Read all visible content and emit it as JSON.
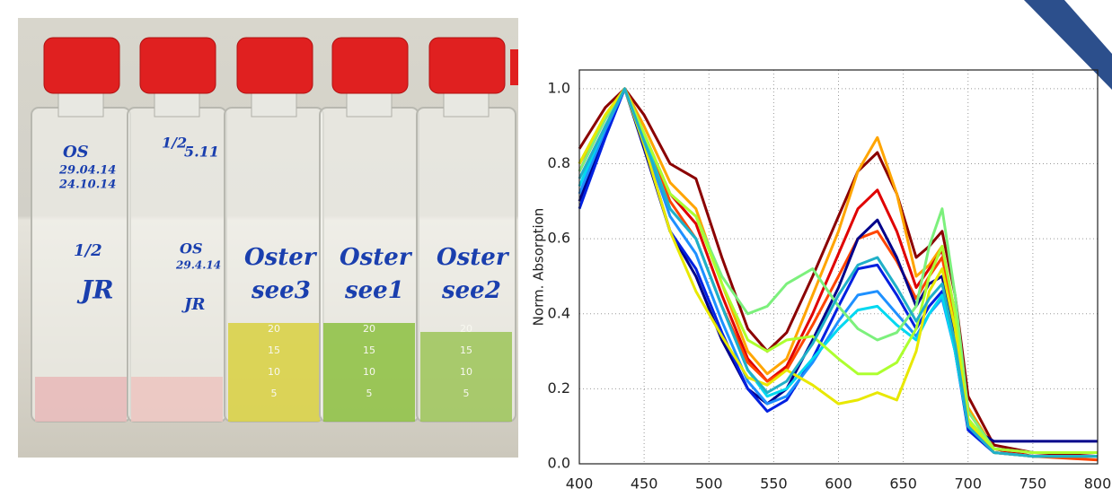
{
  "photo": {
    "flasks": [
      {
        "labels": [
          "OS",
          "29.04.14",
          "24.10.14",
          "1/2",
          "JR"
        ]
      },
      {
        "labels": [
          "1/2",
          "5.11",
          "OS",
          "29.4.14",
          "JR"
        ]
      },
      {
        "labels": [
          "Oster",
          "see3"
        ]
      },
      {
        "labels": [
          "Oster",
          "see1"
        ]
      },
      {
        "labels": [
          "Oster",
          "see2"
        ]
      }
    ],
    "scale_marks": [
      20,
      15,
      10,
      5
    ]
  },
  "chart_data": {
    "type": "line",
    "y_label": "Norm. Absorption",
    "x": [
      400,
      420,
      435,
      450,
      470,
      490,
      510,
      530,
      545,
      560,
      580,
      600,
      615,
      630,
      645,
      660,
      670,
      680,
      690,
      700,
      720,
      750,
      800
    ],
    "series": [
      {
        "color": "#8b0000",
        "values": [
          0.84,
          0.95,
          1.0,
          0.93,
          0.8,
          0.76,
          0.55,
          0.36,
          0.3,
          0.35,
          0.5,
          0.66,
          0.78,
          0.83,
          0.72,
          0.55,
          0.58,
          0.62,
          0.45,
          0.18,
          0.05,
          0.03,
          0.02
        ]
      },
      {
        "color": "#ffa500",
        "values": [
          0.8,
          0.93,
          1.0,
          0.9,
          0.75,
          0.68,
          0.48,
          0.3,
          0.24,
          0.28,
          0.45,
          0.62,
          0.78,
          0.87,
          0.72,
          0.5,
          0.53,
          0.58,
          0.4,
          0.15,
          0.04,
          0.02,
          0.02
        ]
      },
      {
        "color": "#e00000",
        "values": [
          0.78,
          0.92,
          1.0,
          0.88,
          0.72,
          0.64,
          0.45,
          0.28,
          0.22,
          0.26,
          0.4,
          0.56,
          0.68,
          0.73,
          0.62,
          0.47,
          0.52,
          0.57,
          0.4,
          0.14,
          0.04,
          0.02,
          0.02
        ]
      },
      {
        "color": "#ff4500",
        "values": [
          0.8,
          0.92,
          1.0,
          0.87,
          0.7,
          0.6,
          0.42,
          0.27,
          0.22,
          0.25,
          0.37,
          0.5,
          0.6,
          0.62,
          0.54,
          0.44,
          0.5,
          0.55,
          0.38,
          0.12,
          0.03,
          0.02,
          0.01
        ]
      },
      {
        "color": "#00008b",
        "values": [
          0.7,
          0.88,
          1.0,
          0.84,
          0.62,
          0.5,
          0.33,
          0.2,
          0.16,
          0.2,
          0.33,
          0.47,
          0.6,
          0.65,
          0.55,
          0.42,
          0.48,
          0.5,
          0.33,
          0.1,
          0.06,
          0.06,
          0.06
        ]
      },
      {
        "color": "#0020e0",
        "values": [
          0.68,
          0.87,
          1.0,
          0.85,
          0.62,
          0.52,
          0.35,
          0.2,
          0.14,
          0.17,
          0.28,
          0.42,
          0.52,
          0.53,
          0.45,
          0.36,
          0.42,
          0.46,
          0.3,
          0.09,
          0.03,
          0.02,
          0.02
        ]
      },
      {
        "color": "#1e90ff",
        "values": [
          0.72,
          0.89,
          1.0,
          0.86,
          0.66,
          0.56,
          0.38,
          0.22,
          0.16,
          0.18,
          0.27,
          0.38,
          0.45,
          0.46,
          0.4,
          0.34,
          0.4,
          0.44,
          0.3,
          0.1,
          0.03,
          0.02,
          0.02
        ]
      },
      {
        "color": "#00d8f0",
        "values": [
          0.74,
          0.9,
          1.0,
          0.87,
          0.68,
          0.6,
          0.42,
          0.25,
          0.18,
          0.2,
          0.28,
          0.36,
          0.41,
          0.42,
          0.37,
          0.33,
          0.4,
          0.45,
          0.3,
          0.1,
          0.04,
          0.03,
          0.03
        ]
      },
      {
        "color": "#7cf07c",
        "values": [
          0.78,
          0.92,
          1.0,
          0.88,
          0.72,
          0.66,
          0.5,
          0.4,
          0.42,
          0.48,
          0.52,
          0.42,
          0.36,
          0.33,
          0.35,
          0.42,
          0.58,
          0.68,
          0.45,
          0.14,
          0.04,
          0.03,
          0.03
        ]
      },
      {
        "color": "#adff2f",
        "values": [
          0.8,
          0.93,
          1.0,
          0.88,
          0.72,
          0.66,
          0.48,
          0.33,
          0.3,
          0.33,
          0.34,
          0.28,
          0.24,
          0.24,
          0.27,
          0.36,
          0.5,
          0.58,
          0.4,
          0.12,
          0.04,
          0.03,
          0.03
        ]
      },
      {
        "color": "#e8e800",
        "values": [
          0.8,
          0.93,
          1.0,
          0.85,
          0.62,
          0.46,
          0.34,
          0.23,
          0.21,
          0.25,
          0.21,
          0.16,
          0.17,
          0.19,
          0.17,
          0.3,
          0.46,
          0.52,
          0.36,
          0.11,
          0.03,
          0.02,
          0.02
        ]
      },
      {
        "color": "#20b0c8",
        "values": [
          0.76,
          0.9,
          1.0,
          0.86,
          0.68,
          0.6,
          0.42,
          0.25,
          0.19,
          0.22,
          0.32,
          0.45,
          0.53,
          0.55,
          0.47,
          0.38,
          0.44,
          0.48,
          0.32,
          0.1,
          0.03,
          0.02,
          0.02
        ]
      }
    ],
    "xlim": [
      400,
      800
    ],
    "ylim": [
      0,
      1.05
    ],
    "xticks": [
      400,
      450,
      500,
      550,
      600,
      650,
      700,
      750,
      800
    ],
    "yticks": [
      {
        "value": 0,
        "label": "0.0"
      },
      0.2,
      0.4,
      0.6,
      0.8,
      {
        "value": 1,
        "label": "1.0"
      }
    ],
    "grid": true
  }
}
